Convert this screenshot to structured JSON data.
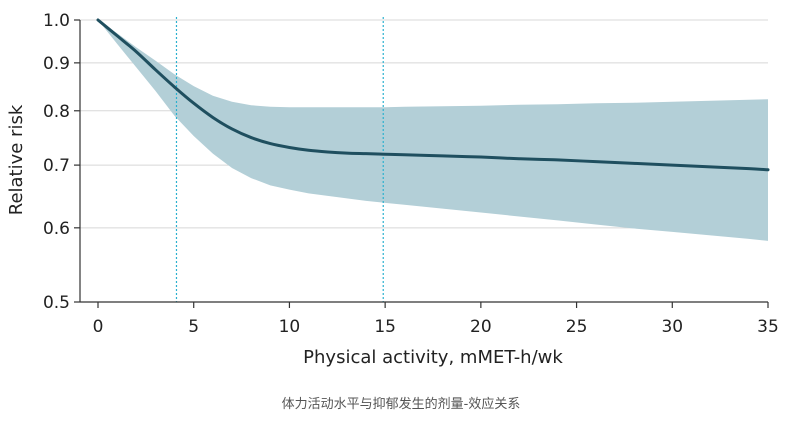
{
  "chart_data": {
    "type": "line",
    "xlabel": "Physical activity, mMET-h/wk",
    "ylabel": "Relative risk",
    "xlim": [
      0,
      35
    ],
    "ylim": [
      0.5,
      1.0
    ],
    "y_scale": "log",
    "grid": "horizontal",
    "xticks": [
      0,
      5,
      10,
      15,
      20,
      25,
      30,
      35
    ],
    "yticks": [
      0.5,
      0.6,
      0.7,
      0.8,
      0.9,
      1.0
    ],
    "ytick_labels": [
      "0.5",
      "0.6",
      "0.7",
      "0.8",
      "0.9",
      "1.0"
    ],
    "reference_lines_x": [
      4.1,
      14.9
    ],
    "series": [
      {
        "x": [
          0,
          1,
          2,
          3,
          4,
          5,
          6,
          7,
          8,
          9,
          10,
          11,
          12,
          13,
          14,
          15,
          16,
          18,
          20,
          22,
          24,
          26,
          28,
          30,
          32,
          34,
          35
        ],
        "y": [
          1.0,
          0.962,
          0.925,
          0.885,
          0.848,
          0.815,
          0.787,
          0.765,
          0.749,
          0.738,
          0.731,
          0.726,
          0.723,
          0.721,
          0.72,
          0.719,
          0.718,
          0.716,
          0.714,
          0.711,
          0.709,
          0.706,
          0.703,
          0.7,
          0.697,
          0.694,
          0.692
        ],
        "ci_lower": [
          1.0,
          0.943,
          0.89,
          0.84,
          0.79,
          0.752,
          0.72,
          0.695,
          0.678,
          0.666,
          0.659,
          0.653,
          0.649,
          0.645,
          0.641,
          0.638,
          0.635,
          0.629,
          0.623,
          0.617,
          0.611,
          0.605,
          0.599,
          0.594,
          0.589,
          0.584,
          0.581
        ],
        "ci_upper": [
          1.0,
          0.968,
          0.935,
          0.905,
          0.875,
          0.85,
          0.83,
          0.818,
          0.811,
          0.808,
          0.807,
          0.807,
          0.807,
          0.807,
          0.807,
          0.807,
          0.808,
          0.809,
          0.81,
          0.812,
          0.813,
          0.815,
          0.816,
          0.818,
          0.82,
          0.822,
          0.823
        ]
      }
    ],
    "colors": {
      "line": "#1f4f5f",
      "ci_band": "#b3cfd7",
      "reference_line": "#2bb0cf",
      "grid": "#d8d8d8",
      "axis": "#333333"
    }
  },
  "caption": "体力活动水平与抑郁发生的剂量-效应关系"
}
